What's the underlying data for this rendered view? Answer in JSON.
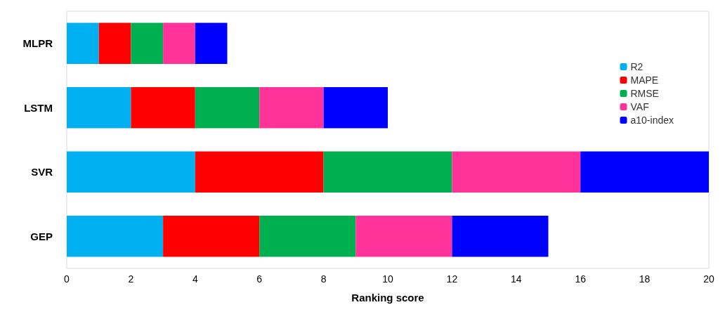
{
  "chart_data": {
    "type": "bar",
    "orientation": "horizontal",
    "stacked": true,
    "xlabel": "Ranking score",
    "categories": [
      "MLPR",
      "LSTM",
      "SVR",
      "GEP"
    ],
    "series": [
      {
        "name": "R2",
        "color": "#00b0f0",
        "values": [
          1,
          2,
          4,
          3
        ]
      },
      {
        "name": "MAPE",
        "color": "#ff0000",
        "values": [
          1,
          2,
          4,
          3
        ]
      },
      {
        "name": "RMSE",
        "color": "#00b050",
        "values": [
          1,
          2,
          4,
          3
        ]
      },
      {
        "name": "VAF",
        "color": "#ff3399",
        "values": [
          1,
          2,
          4,
          3
        ]
      },
      {
        "name": "a10-index",
        "color": "#0000ff",
        "values": [
          1,
          2,
          4,
          3
        ]
      }
    ],
    "xlim": [
      0,
      20
    ],
    "xticks": [
      0,
      2,
      4,
      6,
      8,
      10,
      12,
      14,
      16,
      18,
      20
    ],
    "grid": false,
    "legend": "right"
  }
}
